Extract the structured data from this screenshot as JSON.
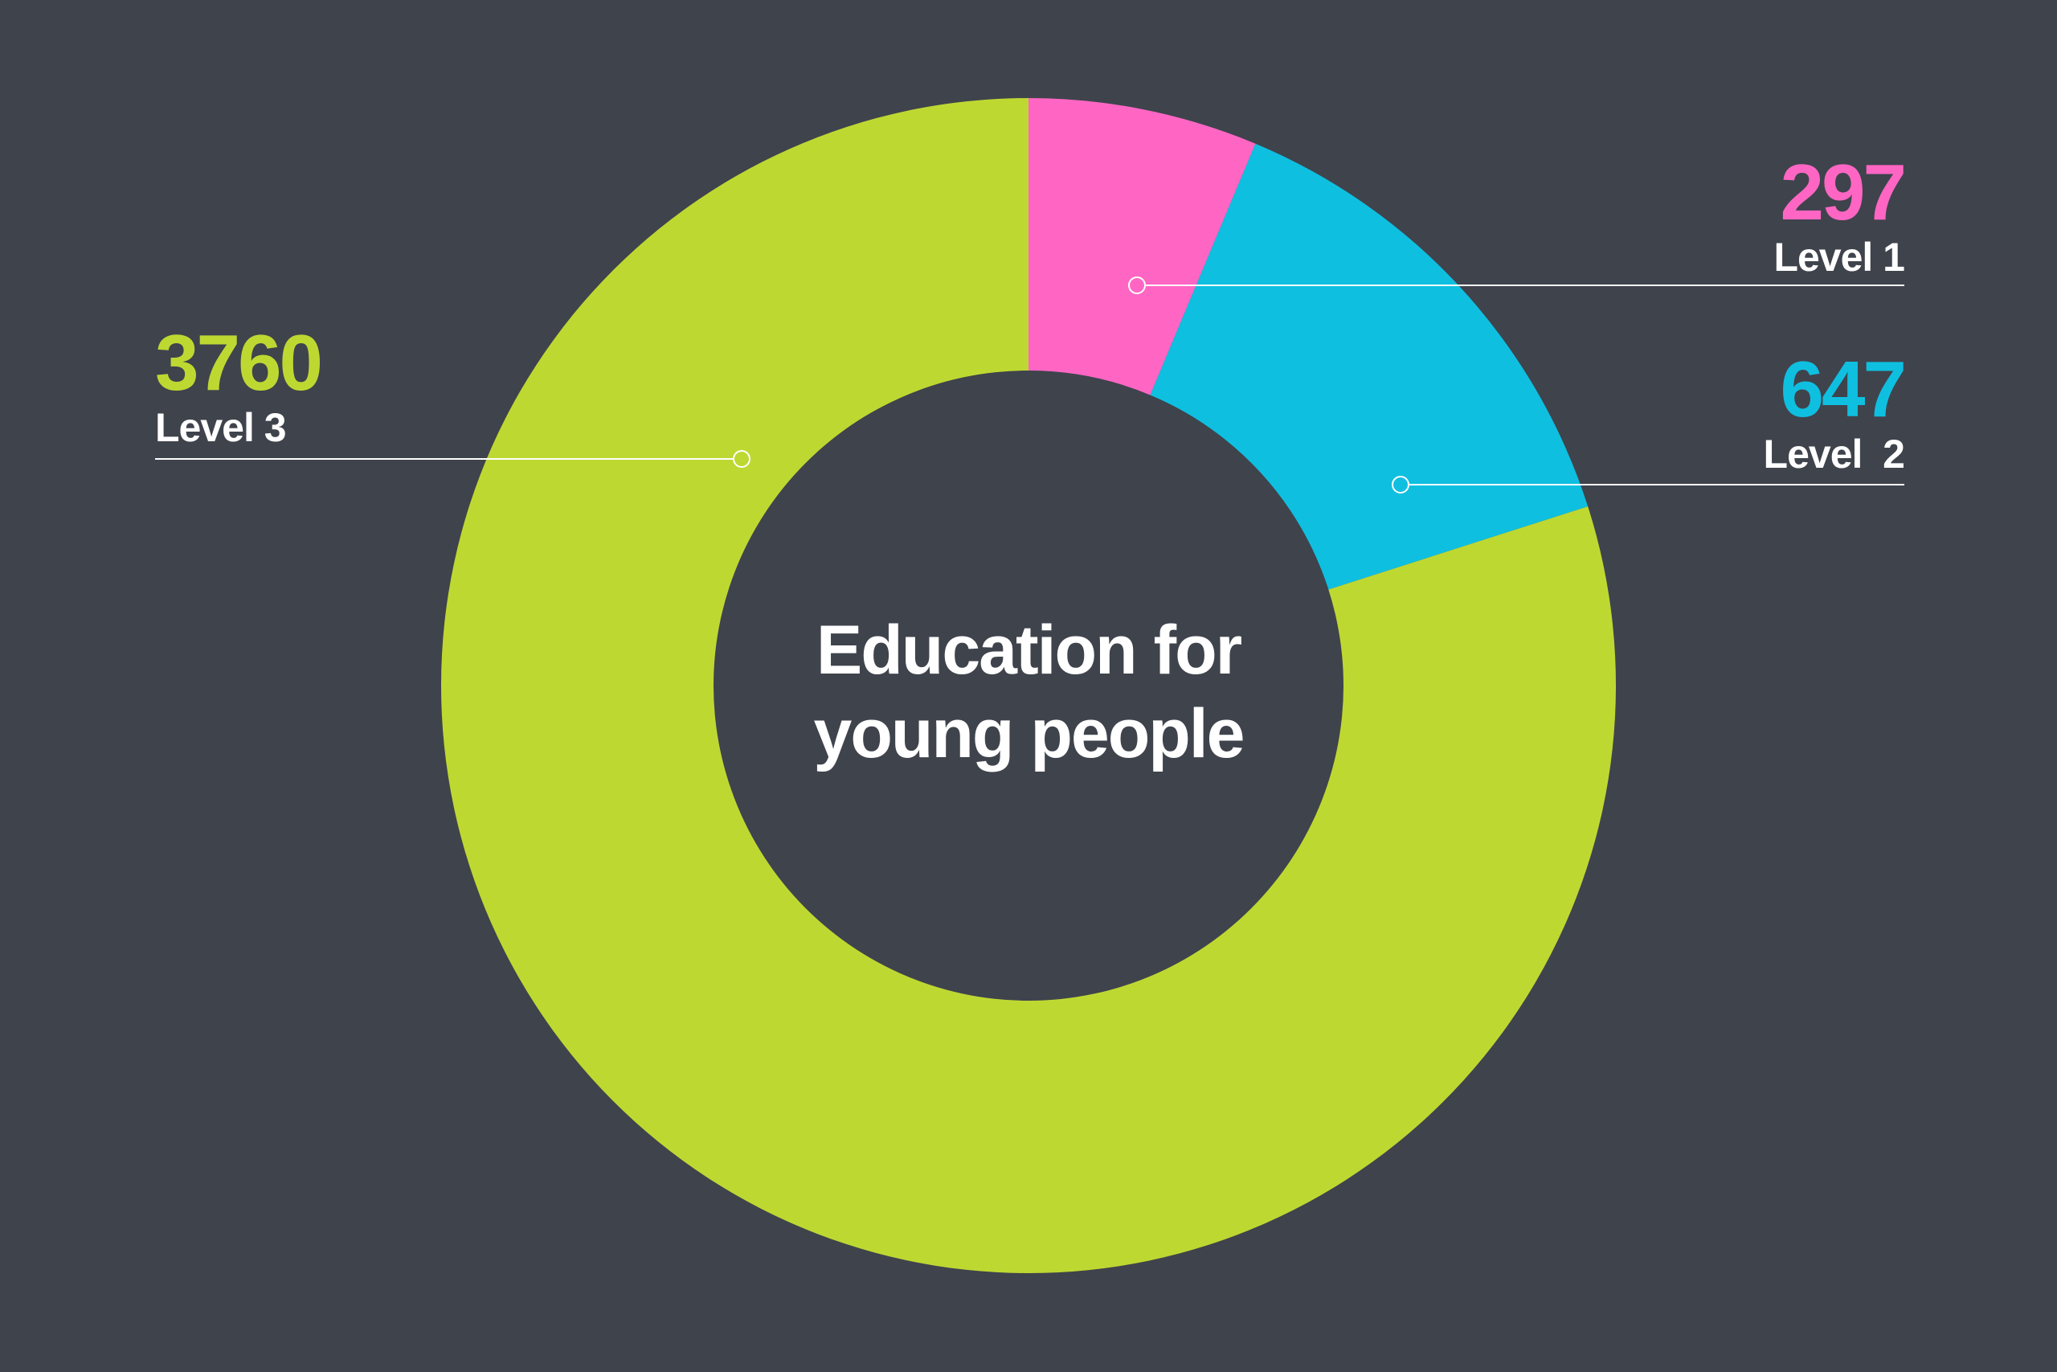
{
  "chart_data": {
    "type": "pie",
    "variant": "donut",
    "title": "Education for young people",
    "title_lines": [
      "Education for",
      "young people"
    ],
    "categories": [
      "Level 1",
      "Level  2",
      "Level 3"
    ],
    "values": [
      297,
      647,
      3760
    ],
    "value_labels": [
      "297",
      "647",
      "3760"
    ],
    "colors": [
      "#ff66c4",
      "#0fbfe0",
      "#bed832"
    ],
    "start": "top",
    "direction": "clockwise",
    "legend": "none",
    "grid": false
  },
  "style": {
    "background": "#3f434c",
    "leader_color": "#ffffff"
  }
}
